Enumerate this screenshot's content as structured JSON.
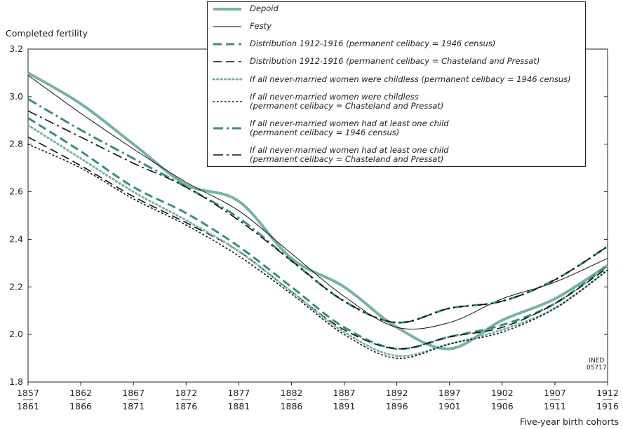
{
  "chart_data": {
    "type": "line",
    "y_label": "Completed fertility",
    "x_label": "Five-year birth cohorts",
    "note": "INED\n05717",
    "categories": [
      [
        "1857",
        "1861"
      ],
      [
        "1862",
        "1866"
      ],
      [
        "1867",
        "1871"
      ],
      [
        "1872",
        "1876"
      ],
      [
        "1877",
        "1881"
      ],
      [
        "1882",
        "1886"
      ],
      [
        "1887",
        "1891"
      ],
      [
        "1892",
        "1896"
      ],
      [
        "1897",
        "1901"
      ],
      [
        "1902",
        "1906"
      ],
      [
        "1907",
        "1911"
      ],
      [
        "1912",
        "1916"
      ]
    ],
    "ylim": [
      1.8,
      3.2
    ],
    "yticks": [
      1.8,
      {
        "value": 2,
        "label": "2.0"
      },
      2.2,
      2.4,
      2.6,
      2.8,
      {
        "value": 3,
        "label": "3.0"
      },
      3.2
    ],
    "smooth": true,
    "series": [
      {
        "name": "Depoid",
        "color": "#79b3a0",
        "width": 4,
        "dash": "solid",
        "values": [
          3.1,
          2.97,
          2.8,
          2.63,
          2.56,
          2.32,
          2.2,
          2.03,
          1.94,
          2.06,
          2.15,
          2.29
        ]
      },
      {
        "name": "Festy",
        "color": "#111111",
        "width": 1,
        "dash": "solid",
        "values": [
          3.09,
          2.93,
          2.78,
          2.64,
          2.52,
          2.34,
          2.16,
          2.03,
          2.05,
          2.15,
          2.22,
          2.32
        ]
      },
      {
        "name": "Distribution 1912-1916 (permanent celibacy = 1946 census)",
        "color": "#3a8f77",
        "width": 3,
        "dash": "dash",
        "values": [
          2.91,
          2.77,
          2.62,
          2.51,
          2.37,
          2.2,
          2.03,
          1.94,
          1.99,
          2.04,
          2.13,
          2.29
        ]
      },
      {
        "name": "Distribution 1912-1916 (permanent celibacy = Chasteland and Pressat)",
        "color": "#111111",
        "width": 1.6,
        "dash": "dash",
        "values": [
          2.83,
          2.71,
          2.58,
          2.47,
          2.35,
          2.18,
          2.02,
          1.94,
          1.99,
          2.03,
          2.13,
          2.28
        ]
      },
      {
        "name": "If all never-married women were childless (permanent celibacy = 1946 census)",
        "color": "#79b3a0",
        "width": 3,
        "dash": "dot",
        "values": [
          2.88,
          2.74,
          2.6,
          2.48,
          2.35,
          2.18,
          2.01,
          1.91,
          1.96,
          2.02,
          2.11,
          2.27
        ]
      },
      {
        "name": "If all never-married women were childless\n(permanent celibacy = Chasteland and Pressat)",
        "color": "#111111",
        "width": 1.6,
        "dash": "dot",
        "values": [
          2.8,
          2.7,
          2.57,
          2.46,
          2.33,
          2.17,
          2.0,
          1.9,
          1.96,
          2.01,
          2.11,
          2.27
        ]
      },
      {
        "name": "If all never-married women had at least one child\n(permanent celibacy = 1946 census)",
        "color": "#3a8f77",
        "width": 3,
        "dash": "dashdot",
        "values": [
          2.99,
          2.86,
          2.74,
          2.62,
          2.49,
          2.31,
          2.14,
          2.05,
          2.11,
          2.14,
          2.23,
          2.37
        ]
      },
      {
        "name": "If all never-married women had at least one child\n(permanent celibacy = Chasteland and Pressat)",
        "color": "#111111",
        "width": 1.6,
        "dash": "dashdot",
        "values": [
          2.94,
          2.83,
          2.72,
          2.62,
          2.48,
          2.31,
          2.14,
          2.05,
          2.11,
          2.14,
          2.23,
          2.37
        ]
      }
    ]
  }
}
